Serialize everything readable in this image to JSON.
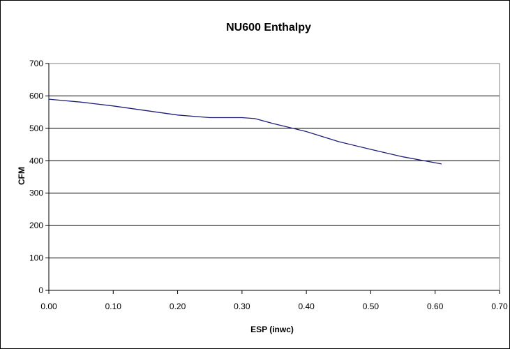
{
  "chart_data": {
    "type": "line",
    "title": "NU600 Enthalpy",
    "xlabel": "ESP (inwc)",
    "ylabel": "CFM",
    "xlim": [
      0,
      0.7
    ],
    "ylim": [
      0,
      700
    ],
    "xticks": [
      "0.00",
      "0.10",
      "0.20",
      "0.30",
      "0.40",
      "0.50",
      "0.60",
      "0.70"
    ],
    "yticks": [
      "0",
      "100",
      "200",
      "300",
      "400",
      "500",
      "600",
      "700"
    ],
    "grid": "horizontal",
    "legend": "none",
    "series": [
      {
        "color": "#1f1f78",
        "x": [
          0.0,
          0.05,
          0.1,
          0.15,
          0.2,
          0.25,
          0.3,
          0.32,
          0.35,
          0.4,
          0.45,
          0.5,
          0.55,
          0.61
        ],
        "y": [
          590,
          581,
          569,
          555,
          541,
          533,
          533,
          530,
          514,
          490,
          459,
          435,
          412,
          390
        ]
      }
    ]
  }
}
